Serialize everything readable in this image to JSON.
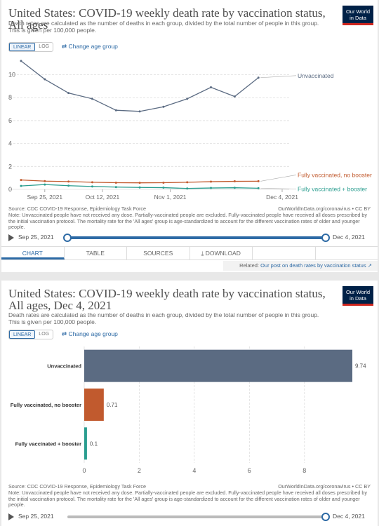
{
  "chart_data": [
    {
      "type": "line",
      "title": "United States: COVID-19 weekly death rate by vaccination status, All ages",
      "subtitle": "Death rates are calculated as the number of deaths in each group, divided by the total number of people in this group. This is given per 100,000 people.",
      "x": [
        "2021-09-18",
        "2021-09-25",
        "2021-10-02",
        "2021-10-09",
        "2021-10-16",
        "2021-10-23",
        "2021-10-30",
        "2021-11-06",
        "2021-11-13",
        "2021-11-20",
        "2021-11-27",
        "2021-12-04"
      ],
      "xticks": [
        {
          "date": "2021-09-25",
          "label": "Sep 25, 2021"
        },
        {
          "date": "2021-10-12",
          "label": "Oct 12, 2021"
        },
        {
          "date": "2021-11-01",
          "label": "Nov 1, 2021"
        },
        {
          "date": "2021-12-04",
          "label": "Dec 4, 2021"
        }
      ],
      "yticks": [
        0,
        2,
        4,
        6,
        8,
        10
      ],
      "ylim": [
        0,
        11.5
      ],
      "grid": true,
      "series": [
        {
          "name": "Unvaccinated",
          "color": "#5b6b82",
          "values": [
            11.2,
            9.6,
            8.4,
            7.9,
            6.9,
            6.8,
            7.2,
            7.9,
            8.9,
            8.1,
            9.74,
            null
          ]
        },
        {
          "name": "Fully vaccinated, no booster",
          "color": "#c15a2e",
          "values": [
            0.82,
            0.72,
            0.68,
            0.62,
            0.58,
            0.57,
            0.58,
            0.62,
            0.67,
            0.7,
            0.71,
            null
          ]
        },
        {
          "name": "Fully vaccinated + booster",
          "color": "#2a9d8f",
          "values": [
            0.3,
            0.42,
            0.32,
            0.25,
            0.2,
            0.17,
            0.15,
            0.08,
            0.12,
            0.14,
            0.1,
            null
          ]
        }
      ],
      "series_label_colors": [
        "#5b6b82",
        "#c15a2e",
        "#2a9d8f"
      ]
    },
    {
      "type": "bar",
      "title": "United States: COVID-19 weekly death rate by vaccination status, All ages, Dec 4, 2021",
      "subtitle": "Death rates are calculated as the number of deaths in each group, divided by the total number of people in this group. This is given per 100,000 people.",
      "categories": [
        "Unvaccinated",
        "Fully vaccinated, no booster",
        "Fully vaccinated + booster"
      ],
      "values": [
        9.74,
        0.71,
        0.1
      ],
      "value_labels": [
        "9.74",
        "0.71",
        "0.1"
      ],
      "colors": [
        "#5b6b82",
        "#c15a2e",
        "#2a9d8f"
      ],
      "xticks": [
        0,
        2,
        4,
        6,
        8
      ],
      "xlim": [
        0,
        9.74
      ],
      "grid": true
    }
  ],
  "ui": {
    "logo_line1": "Our World",
    "logo_line2": "in Data",
    "linear_label": "LINEAR",
    "log_label": "LOG",
    "change_age_label": "⇄ Change age group",
    "source_left": "Source: CDC COVID-19 Response, Epidemiology Task Force",
    "source_right": "OurWorldInData.org/coronavirus • CC BY",
    "note": "Note: Unvaccinated people have not received any dose. Partially-vaccinated people are excluded. Fully-vaccinated people have received all doses prescribed by the initial vaccination protocol. The mortality rate for the 'All ages' group is age-standardized to account for the different vaccination rates of older and younger people.",
    "timeline_start": "Sep 25, 2021",
    "timeline_end": "Dec 4, 2021",
    "tabs": [
      "CHART",
      "TABLE",
      "SOURCES",
      "⤓ DOWNLOAD",
      "",
      ""
    ],
    "related_prefix": "Related: ",
    "related_link": "Our post on death rates by vaccination status",
    "related_icon": "external-link-icon",
    "accent": "#2d6aa5"
  }
}
